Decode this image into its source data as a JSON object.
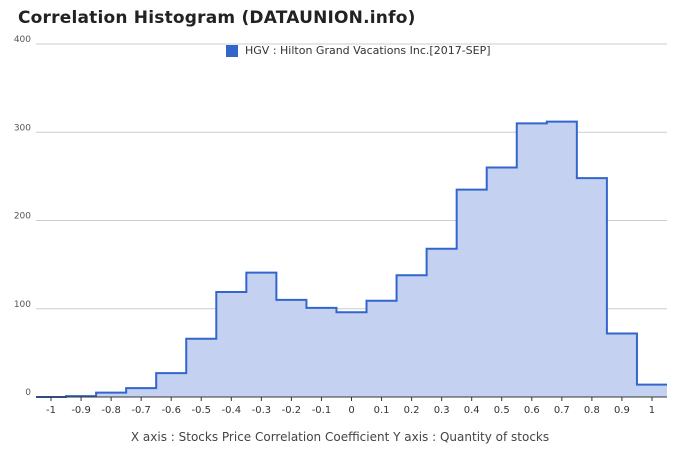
{
  "title": "Correlation Histogram (DATAUNION.info)",
  "caption": "X axis : Stocks Price Correlation Coefficient  Y axis : Quantity of stocks",
  "colors": {
    "line": "#3366cc",
    "fill": "#c4d1f0",
    "grid": "#cccccc",
    "axis": "#333333"
  },
  "chart_data": {
    "type": "area",
    "style": "stepped",
    "grid": true,
    "legend_position": "top",
    "series": [
      {
        "name": "HGV : Hilton Grand Vacations Inc.[2017-SEP]",
        "bins": [
          -1.05,
          -0.95,
          -0.85,
          -0.75,
          -0.65,
          -0.55,
          -0.45,
          -0.35,
          -0.25,
          -0.15,
          -0.05,
          0.05,
          0.15,
          0.25,
          0.35,
          0.45,
          0.55,
          0.65,
          0.75,
          0.85,
          0.95,
          1.05
        ],
        "values": [
          0,
          1,
          5,
          10,
          27,
          66,
          119,
          141,
          110,
          101,
          96,
          109,
          138,
          168,
          235,
          260,
          310,
          312,
          248,
          72,
          14
        ]
      }
    ],
    "x_ticks": [
      "-1",
      "-0.9",
      "-0.8",
      "-0.7",
      "-0.6",
      "-0.5",
      "-0.4",
      "-0.3",
      "-0.2",
      "-0.1",
      "0",
      "0.1",
      "0.2",
      "0.3",
      "0.4",
      "0.5",
      "0.6",
      "0.7",
      "0.8",
      "0.9",
      "1"
    ],
    "y_ticks": [
      "0",
      "100",
      "200",
      "300",
      "400"
    ],
    "xlim": [
      -1.05,
      1.05
    ],
    "ylim": [
      0,
      400
    ]
  }
}
